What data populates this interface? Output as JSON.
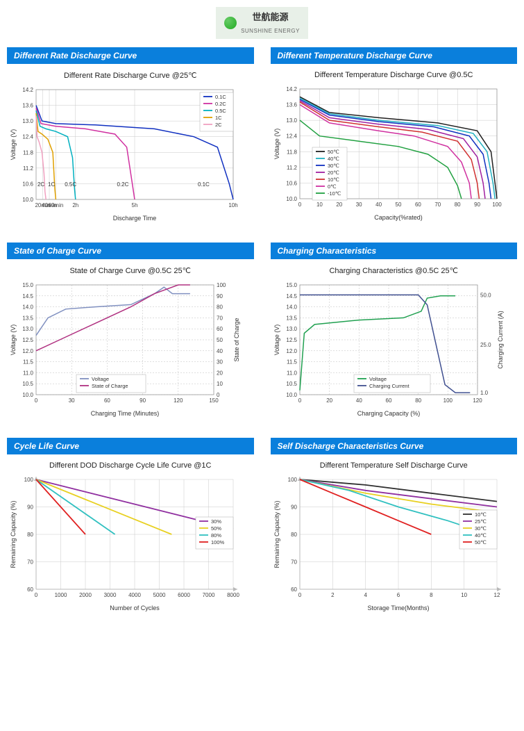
{
  "logo": {
    "cn": "世航能源",
    "en": "SUNSHINE ENERGY"
  },
  "charts": {
    "rate_discharge": {
      "header": "Different Rate Discharge Curve",
      "title": "Different Rate Discharge Curve @25℃",
      "xlabel": "Discharge Time",
      "ylabel": "Voltage (V)",
      "ylim": [
        10.0,
        14.2
      ],
      "yticks": [
        10.0,
        10.6,
        11.2,
        11.8,
        12.4,
        13.0,
        13.6,
        14.2
      ],
      "xlim": [
        0,
        10
      ],
      "xticks": [
        {
          "v": 0.33,
          "lbl": "20min"
        },
        {
          "v": 0.67,
          "lbl": "40min"
        },
        {
          "v": 1.0,
          "lbl": "60min"
        },
        {
          "v": 2.0,
          "lbl": "2h"
        },
        {
          "v": 5.0,
          "lbl": "5h"
        },
        {
          "v": 10.0,
          "lbl": "10h"
        }
      ],
      "series": [
        {
          "name": "0.1C",
          "color": "#1030c0",
          "pts": [
            [
              0,
              13.6
            ],
            [
              0.3,
              13.0
            ],
            [
              1,
              12.9
            ],
            [
              3,
              12.85
            ],
            [
              6,
              12.7
            ],
            [
              8,
              12.4
            ],
            [
              9.2,
              12.0
            ],
            [
              9.8,
              10.6
            ],
            [
              10,
              10.0
            ]
          ],
          "inline_x": 8.5,
          "inline_y": 10.5
        },
        {
          "name": "0.2C",
          "color": "#d030a0",
          "pts": [
            [
              0,
              13.5
            ],
            [
              0.25,
              12.9
            ],
            [
              1,
              12.8
            ],
            [
              2.5,
              12.7
            ],
            [
              4,
              12.5
            ],
            [
              4.6,
              12.0
            ],
            [
              4.9,
              10.5
            ],
            [
              5,
              10.0
            ]
          ],
          "inline_x": 4.4,
          "inline_y": 10.5
        },
        {
          "name": "0.5C",
          "color": "#00b0c0",
          "pts": [
            [
              0,
              13.4
            ],
            [
              0.2,
              12.8
            ],
            [
              0.5,
              12.7
            ],
            [
              1,
              12.6
            ],
            [
              1.6,
              12.4
            ],
            [
              1.85,
              11.6
            ],
            [
              1.95,
              10.4
            ],
            [
              2,
              10.0
            ]
          ],
          "inline_x": 1.75,
          "inline_y": 10.5
        },
        {
          "name": "1C",
          "color": "#e0a000",
          "pts": [
            [
              0,
              13.3
            ],
            [
              0.1,
              12.6
            ],
            [
              0.3,
              12.5
            ],
            [
              0.6,
              12.3
            ],
            [
              0.85,
              11.8
            ],
            [
              0.95,
              10.4
            ],
            [
              1,
              10.0
            ]
          ],
          "inline_x": 0.78,
          "inline_y": 10.5
        },
        {
          "name": "2C",
          "color": "#f0a0c0",
          "pts": [
            [
              0,
              13.2
            ],
            [
              0.05,
              12.4
            ],
            [
              0.15,
              12.2
            ],
            [
              0.3,
              11.8
            ],
            [
              0.4,
              11.0
            ],
            [
              0.45,
              10.3
            ],
            [
              0.5,
              10.0
            ]
          ],
          "inline_x": 0.25,
          "inline_y": 10.5
        }
      ],
      "legend_items": [
        {
          "lbl": "0.1C",
          "color": "#1030c0"
        },
        {
          "lbl": "0.2C",
          "color": "#d030a0"
        },
        {
          "lbl": "0.5C",
          "color": "#00b0c0"
        },
        {
          "lbl": "1C",
          "color": "#e0a000"
        },
        {
          "lbl": "2C",
          "color": "#f0a0c0"
        }
      ]
    },
    "temp_discharge": {
      "header": "Different Temperature Discharge Curve",
      "title": "Different Temperature Discharge Curve @0.5C",
      "xlabel": "Capacity(%rated)",
      "ylabel": "Voltage (V)",
      "ylim": [
        10.0,
        14.2
      ],
      "yticks": [
        10.0,
        10.6,
        11.2,
        11.8,
        12.4,
        13.0,
        13.6,
        14.2
      ],
      "xlim": [
        0,
        100
      ],
      "xtick_step": 10,
      "series": [
        {
          "name": "50℃",
          "color": "#202020",
          "pts": [
            [
              0,
              13.9
            ],
            [
              15,
              13.3
            ],
            [
              40,
              13.1
            ],
            [
              70,
              12.9
            ],
            [
              90,
              12.6
            ],
            [
              97,
              11.8
            ],
            [
              99,
              10.6
            ],
            [
              100,
              10.0
            ]
          ]
        },
        {
          "name": "40℃",
          "color": "#20b0c0",
          "pts": [
            [
              0,
              13.85
            ],
            [
              15,
              13.25
            ],
            [
              40,
              13.0
            ],
            [
              70,
              12.8
            ],
            [
              88,
              12.5
            ],
            [
              95,
              11.8
            ],
            [
              98,
              10.6
            ],
            [
              99,
              10.0
            ]
          ]
        },
        {
          "name": "30℃",
          "color": "#1030c0",
          "pts": [
            [
              0,
              13.8
            ],
            [
              15,
              13.2
            ],
            [
              40,
              12.95
            ],
            [
              68,
              12.75
            ],
            [
              86,
              12.4
            ],
            [
              93,
              11.7
            ],
            [
              96,
              10.6
            ],
            [
              97,
              10.0
            ]
          ]
        },
        {
          "name": "20℃",
          "color": "#a020a0",
          "pts": [
            [
              0,
              13.75
            ],
            [
              15,
              13.1
            ],
            [
              40,
              12.85
            ],
            [
              65,
              12.65
            ],
            [
              83,
              12.3
            ],
            [
              90,
              11.6
            ],
            [
              93,
              10.6
            ],
            [
              94,
              10.0
            ]
          ]
        },
        {
          "name": "10℃",
          "color": "#d03030",
          "pts": [
            [
              0,
              13.7
            ],
            [
              15,
              13.0
            ],
            [
              40,
              12.75
            ],
            [
              62,
              12.55
            ],
            [
              80,
              12.2
            ],
            [
              87,
              11.5
            ],
            [
              90,
              10.6
            ],
            [
              91,
              10.0
            ]
          ]
        },
        {
          "name": "0℃",
          "color": "#d030a0",
          "pts": [
            [
              0,
              13.6
            ],
            [
              15,
              12.9
            ],
            [
              40,
              12.6
            ],
            [
              58,
              12.4
            ],
            [
              75,
              12.0
            ],
            [
              82,
              11.4
            ],
            [
              86,
              10.6
            ],
            [
              87,
              10.0
            ]
          ]
        },
        {
          "name": "-10℃",
          "color": "#20a040",
          "pts": [
            [
              0,
              13.0
            ],
            [
              10,
              12.4
            ],
            [
              30,
              12.2
            ],
            [
              50,
              12.0
            ],
            [
              65,
              11.7
            ],
            [
              75,
              11.2
            ],
            [
              80,
              10.5
            ],
            [
              82,
              10.0
            ]
          ]
        }
      ],
      "legend_items": [
        {
          "lbl": "50℃",
          "color": "#202020"
        },
        {
          "lbl": "40℃",
          "color": "#20b0c0"
        },
        {
          "lbl": "30℃",
          "color": "#1030c0"
        },
        {
          "lbl": "20℃",
          "color": "#a020a0"
        },
        {
          "lbl": "10℃",
          "color": "#d03030"
        },
        {
          "lbl": "0℃",
          "color": "#d030a0"
        },
        {
          "lbl": "-10℃",
          "color": "#20a040"
        }
      ]
    },
    "soc": {
      "header": "State of Charge Curve",
      "title": "State of Charge Curve @0.5C 25℃",
      "xlabel": "Charging Time (Minutes)",
      "ylabel": "Voltage (V)",
      "y2label": "State of Charge",
      "ylim": [
        10.0,
        15.0
      ],
      "yticks": [
        10.0,
        10.5,
        11.0,
        11.5,
        12.0,
        12.5,
        13.0,
        13.5,
        14.0,
        14.5,
        15.0
      ],
      "y2lim": [
        0,
        100
      ],
      "y2tick_step": 10,
      "xlim": [
        0,
        150
      ],
      "xtick_step": 30,
      "series": [
        {
          "name": "Voltage",
          "color": "#8090c0",
          "pts": [
            [
              0,
              12.7
            ],
            [
              10,
              13.5
            ],
            [
              25,
              13.9
            ],
            [
              50,
              14.0
            ],
            [
              80,
              14.1
            ],
            [
              100,
              14.6
            ],
            [
              108,
              14.9
            ],
            [
              115,
              14.6
            ],
            [
              130,
              14.6
            ]
          ]
        },
        {
          "name": "State of Charge",
          "color": "#b03080",
          "use_y2": true,
          "pts": [
            [
              0,
              40
            ],
            [
              20,
              50
            ],
            [
              50,
              65
            ],
            [
              80,
              80
            ],
            [
              100,
              92
            ],
            [
              120,
              100
            ],
            [
              130,
              100
            ]
          ]
        }
      ],
      "legend_items": [
        {
          "lbl": "Voltage",
          "color": "#8090c0"
        },
        {
          "lbl": "State of Charge",
          "color": "#b03080"
        }
      ]
    },
    "charging": {
      "header": "Charging Characteristics",
      "title": "Charging Characteristics @0.5C 25℃",
      "xlabel": "Charging Capacity (%)",
      "ylabel": "Voltage (V)",
      "y2label": "Charging Current (A)",
      "ylim": [
        10.0,
        15.0
      ],
      "yticks": [
        10.0,
        10.5,
        11.0,
        11.5,
        12.0,
        12.5,
        13.0,
        13.5,
        14.0,
        14.5,
        15.0
      ],
      "y2lim": [
        0,
        55
      ],
      "y2ticks": [
        {
          "v": 1,
          "lbl": "1.0"
        },
        {
          "v": 25,
          "lbl": "25.0"
        },
        {
          "v": 50,
          "lbl": "50.0"
        }
      ],
      "xlim": [
        0,
        120
      ],
      "xtick_step": 20,
      "series": [
        {
          "name": "Voltage",
          "color": "#20a050",
          "pts": [
            [
              0,
              10.2
            ],
            [
              3,
              12.8
            ],
            [
              10,
              13.2
            ],
            [
              40,
              13.4
            ],
            [
              70,
              13.5
            ],
            [
              82,
              13.8
            ],
            [
              86,
              14.4
            ],
            [
              95,
              14.5
            ],
            [
              105,
              14.5
            ]
          ]
        },
        {
          "name": "Charging Current",
          "color": "#405090",
          "use_y2": true,
          "pts": [
            [
              0,
              50
            ],
            [
              80,
              50
            ],
            [
              86,
              45
            ],
            [
              92,
              25
            ],
            [
              98,
              5
            ],
            [
              105,
              1
            ],
            [
              115,
              1
            ]
          ]
        }
      ],
      "legend_items": [
        {
          "lbl": "Voltage",
          "color": "#20a050"
        },
        {
          "lbl": "Charging Current",
          "color": "#405090"
        }
      ]
    },
    "cycle": {
      "header": "Cycle Life Curve",
      "title": "Different DOD Discharge Cycle Life Curve @1C",
      "xlabel": "Number of Cycles",
      "ylabel": "Remaining Capacity (%)",
      "ylim": [
        60,
        100
      ],
      "ytick_step": 10,
      "xlim": [
        0,
        8000
      ],
      "xtick_step": 1000,
      "series": [
        {
          "name": "30%",
          "color": "#9030a0",
          "pts": [
            [
              0,
              100
            ],
            [
              8000,
              82
            ]
          ]
        },
        {
          "name": "50%",
          "color": "#e8d020",
          "pts": [
            [
              0,
              100
            ],
            [
              5500,
              80
            ]
          ]
        },
        {
          "name": "80%",
          "color": "#30c0c0",
          "pts": [
            [
              0,
              100
            ],
            [
              3200,
              80
            ]
          ]
        },
        {
          "name": "100%",
          "color": "#e02020",
          "pts": [
            [
              0,
              100
            ],
            [
              2000,
              80
            ]
          ]
        }
      ],
      "legend_items": [
        {
          "lbl": "30%",
          "color": "#9030a0"
        },
        {
          "lbl": "50%",
          "color": "#e8d020"
        },
        {
          "lbl": "80%",
          "color": "#30c0c0"
        },
        {
          "lbl": "100%",
          "color": "#e02020"
        }
      ]
    },
    "self_discharge": {
      "header": "Self Discharge Characteristics Curve",
      "title": "Different Temperature Self Discharge Curve",
      "xlabel": "Storage Time(Months)",
      "ylabel": "Remaining Capacity (%)",
      "ylim": [
        60,
        100
      ],
      "ytick_step": 10,
      "xlim": [
        0,
        12
      ],
      "xtick_step": 2,
      "series": [
        {
          "name": "10℃",
          "color": "#303030",
          "pts": [
            [
              0,
              100
            ],
            [
              4,
              98
            ],
            [
              8,
              95
            ],
            [
              12,
              92
            ]
          ]
        },
        {
          "name": "25℃",
          "color": "#9030a0",
          "pts": [
            [
              0,
              100
            ],
            [
              4,
              96
            ],
            [
              8,
              93
            ],
            [
              12,
              90
            ]
          ]
        },
        {
          "name": "30℃",
          "color": "#e8d020",
          "pts": [
            [
              0,
              100
            ],
            [
              4,
              95
            ],
            [
              8,
              91
            ],
            [
              12,
              88
            ]
          ]
        },
        {
          "name": "40℃",
          "color": "#30c0c0",
          "pts": [
            [
              0,
              100
            ],
            [
              3,
              96
            ],
            [
              6,
              90
            ],
            [
              9,
              85
            ],
            [
              10,
              83
            ]
          ]
        },
        {
          "name": "50℃",
          "color": "#e02020",
          "pts": [
            [
              0,
              100
            ],
            [
              2,
              95
            ],
            [
              4,
              90
            ],
            [
              6,
              85
            ],
            [
              8,
              80
            ]
          ]
        }
      ],
      "legend_items": [
        {
          "lbl": "10℃",
          "color": "#303030"
        },
        {
          "lbl": "25℃",
          "color": "#9030a0"
        },
        {
          "lbl": "30℃",
          "color": "#e8d020"
        },
        {
          "lbl": "40℃",
          "color": "#30c0c0"
        },
        {
          "lbl": "50℃",
          "color": "#e02020"
        }
      ]
    }
  }
}
